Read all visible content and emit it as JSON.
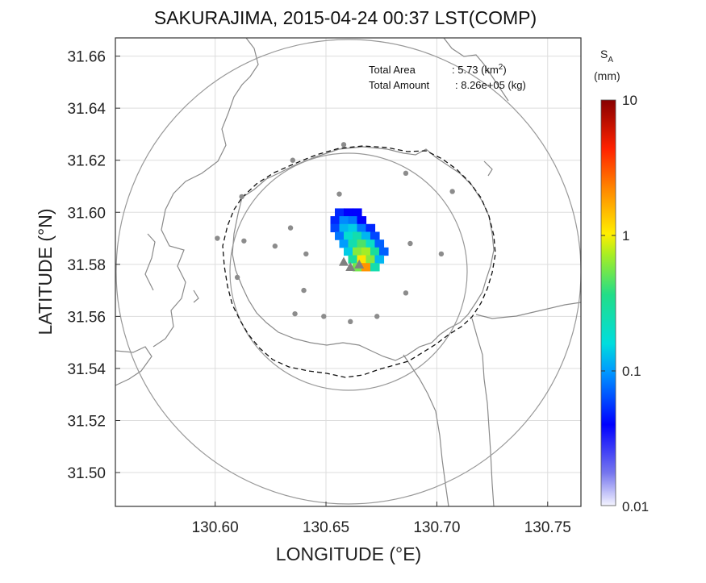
{
  "title": "SAKURAJIMA, 2015-04-24 00:37 LST(COMP)",
  "xlabel": "LONGITUDE (°E)",
  "ylabel": "LATITUDE (°N)",
  "info": {
    "area_label": "Total Area",
    "area_value": ": 5.73 (km",
    "area_sup": "2",
    "area_close": ")",
    "amount_label": "Total Amount",
    "amount_value": ": 8.26e+05 (kg)"
  },
  "colorbar": {
    "title_main": "S",
    "title_sub": "A",
    "unit": "(mm)",
    "labels": [
      "10",
      "1",
      "0.1",
      "0.01"
    ],
    "scale": "log"
  },
  "axes": {
    "xlim": [
      130.555,
      130.765
    ],
    "ylim": [
      31.487,
      31.667
    ],
    "xticks": [
      130.6,
      130.65,
      130.7,
      130.75
    ],
    "xtick_labels": [
      "130.60",
      "130.65",
      "130.70",
      "130.75"
    ],
    "yticks": [
      31.5,
      31.52,
      31.54,
      31.56,
      31.58,
      31.6,
      31.62,
      31.64,
      31.66
    ],
    "ytick_labels": [
      "31.50",
      "31.52",
      "31.54",
      "31.56",
      "31.58",
      "31.60",
      "31.62",
      "31.64",
      "31.66"
    ],
    "grid": true
  },
  "map_data": {
    "radar_ranges": [
      {
        "center": [
          130.658,
          31.578
        ],
        "radius_lon": 0.105
      },
      {
        "center": [
          130.658,
          31.578
        ],
        "radius_lon": 0.05
      }
    ],
    "stations": [
      [
        130.658,
        31.626
      ],
      [
        130.635,
        31.62
      ],
      [
        130.686,
        31.615
      ],
      [
        130.612,
        31.606
      ],
      [
        130.707,
        31.608
      ],
      [
        130.656,
        31.607
      ],
      [
        130.601,
        31.59
      ],
      [
        130.613,
        31.589
      ],
      [
        130.634,
        31.594
      ],
      [
        130.627,
        31.587
      ],
      [
        130.641,
        31.584
      ],
      [
        130.688,
        31.588
      ],
      [
        130.702,
        31.584
      ],
      [
        130.61,
        31.575
      ],
      [
        130.64,
        31.57
      ],
      [
        130.686,
        31.569
      ],
      [
        130.636,
        31.561
      ],
      [
        130.649,
        31.56
      ],
      [
        130.673,
        31.56
      ],
      [
        130.661,
        31.558
      ]
    ],
    "vents": [
      [
        130.658,
        31.581
      ],
      [
        130.661,
        31.579
      ],
      [
        130.665,
        31.58
      ]
    ],
    "ash_field": [
      {
        "lon": 130.656,
        "lat": 31.6,
        "sa": 0.05
      },
      {
        "lon": 130.66,
        "lat": 31.6,
        "sa": 0.04
      },
      {
        "lon": 130.664,
        "lat": 31.6,
        "sa": 0.04
      },
      {
        "lon": 130.654,
        "lat": 31.597,
        "sa": 0.05
      },
      {
        "lon": 130.658,
        "lat": 31.597,
        "sa": 0.09
      },
      {
        "lon": 130.662,
        "lat": 31.597,
        "sa": 0.08
      },
      {
        "lon": 130.666,
        "lat": 31.597,
        "sa": 0.04
      },
      {
        "lon": 130.654,
        "lat": 31.594,
        "sa": 0.06
      },
      {
        "lon": 130.658,
        "lat": 31.594,
        "sa": 0.12
      },
      {
        "lon": 130.662,
        "lat": 31.594,
        "sa": 0.14
      },
      {
        "lon": 130.666,
        "lat": 31.594,
        "sa": 0.08
      },
      {
        "lon": 130.67,
        "lat": 31.594,
        "sa": 0.05
      },
      {
        "lon": 130.656,
        "lat": 31.591,
        "sa": 0.08
      },
      {
        "lon": 130.66,
        "lat": 31.591,
        "sa": 0.18
      },
      {
        "lon": 130.664,
        "lat": 31.591,
        "sa": 0.25
      },
      {
        "lon": 130.668,
        "lat": 31.591,
        "sa": 0.12
      },
      {
        "lon": 130.672,
        "lat": 31.591,
        "sa": 0.06
      },
      {
        "lon": 130.658,
        "lat": 31.588,
        "sa": 0.1
      },
      {
        "lon": 130.662,
        "lat": 31.588,
        "sa": 0.25
      },
      {
        "lon": 130.666,
        "lat": 31.588,
        "sa": 0.45
      },
      {
        "lon": 130.67,
        "lat": 31.588,
        "sa": 0.2
      },
      {
        "lon": 130.674,
        "lat": 31.588,
        "sa": 0.07
      },
      {
        "lon": 130.66,
        "lat": 31.585,
        "sa": 0.14
      },
      {
        "lon": 130.664,
        "lat": 31.585,
        "sa": 0.6
      },
      {
        "lon": 130.668,
        "lat": 31.585,
        "sa": 0.7
      },
      {
        "lon": 130.672,
        "lat": 31.585,
        "sa": 0.3
      },
      {
        "lon": 130.676,
        "lat": 31.585,
        "sa": 0.07
      },
      {
        "lon": 130.662,
        "lat": 31.582,
        "sa": 0.3
      },
      {
        "lon": 130.666,
        "lat": 31.582,
        "sa": 1.1
      },
      {
        "lon": 130.67,
        "lat": 31.582,
        "sa": 0.6
      },
      {
        "lon": 130.674,
        "lat": 31.582,
        "sa": 0.12
      },
      {
        "lon": 130.664,
        "lat": 31.579,
        "sa": 0.55
      },
      {
        "lon": 130.668,
        "lat": 31.579,
        "sa": 2.0
      },
      {
        "lon": 130.672,
        "lat": 31.579,
        "sa": 0.25
      }
    ]
  },
  "colors": {
    "frame": "#333333",
    "grid": "#dddddd",
    "coast": "#8a8a8a",
    "range_ring": "#999999",
    "island_outline": "#111111",
    "station": "#8c8c8c"
  }
}
